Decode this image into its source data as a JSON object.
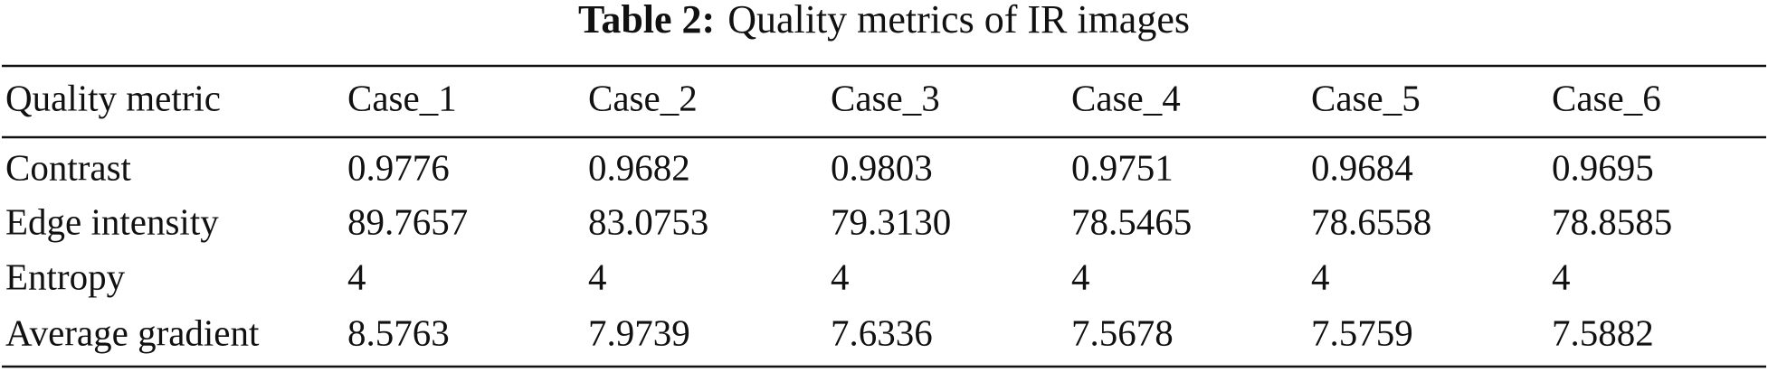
{
  "caption": {
    "label": "Table 2:",
    "title": "Quality metrics of IR images"
  },
  "table": {
    "header": [
      "Quality metric",
      "Case_1",
      "Case_2",
      "Case_3",
      "Case_4",
      "Case_5",
      "Case_6"
    ],
    "rows": [
      [
        "Contrast",
        "0.9776",
        "0.9682",
        "0.9803",
        "0.9751",
        "0.9684",
        "0.9695"
      ],
      [
        "Edge intensity",
        "89.7657",
        "83.0753",
        "79.3130",
        "78.5465",
        "78.6558",
        "78.8585"
      ],
      [
        "Entropy",
        "4",
        "4",
        "4",
        "4",
        "4",
        "4"
      ],
      [
        "Average gradient",
        "8.5763",
        "7.9739",
        "7.6336",
        "7.5678",
        "7.5759",
        "7.5882"
      ]
    ]
  }
}
